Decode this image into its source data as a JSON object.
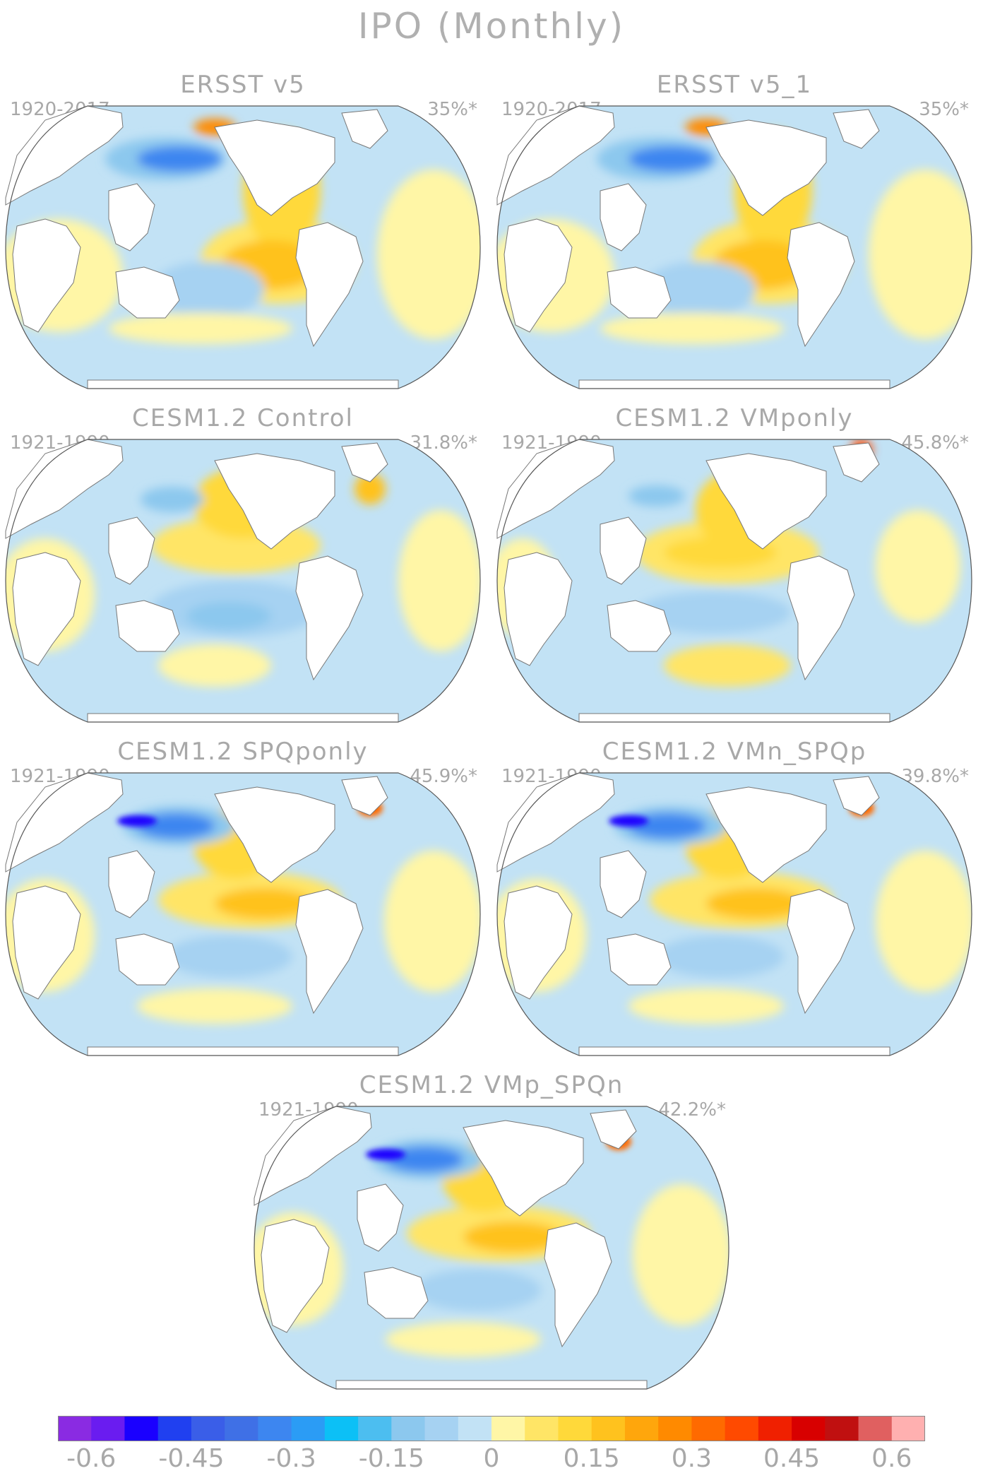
{
  "title": "IPO (Monthly)",
  "panels": [
    {
      "title": "ERSST v5",
      "period": "1920-2017",
      "variance": "35%*"
    },
    {
      "title": "ERSST v5_1",
      "period": "1920-2017",
      "variance": "35%*"
    },
    {
      "title": "CESM1.2 Control",
      "period": "1921-1990",
      "variance": "31.8%*"
    },
    {
      "title": "CESM1.2 VMponly",
      "period": "1921-1990",
      "variance": "45.8%*"
    },
    {
      "title": "CESM1.2 SPQponly",
      "period": "1921-1990",
      "variance": "45.9%*"
    },
    {
      "title": "CESM1.2 VMn_SPQp",
      "period": "1921-1990",
      "variance": "39.8%*"
    },
    {
      "title": "CESM1.2 VMp_SPQn",
      "period": "1921-1990",
      "variance": "42.2%*"
    }
  ],
  "colorbar": {
    "colors": [
      "#8a2be2",
      "#6a1cf0",
      "#1a00ff",
      "#2040f0",
      "#3a5ee8",
      "#3f70e6",
      "#3d86f0",
      "#2b9cf5",
      "#0cc0f6",
      "#4cbef0",
      "#8cc8ee",
      "#a6d2f2",
      "#c2e2f5",
      "#fff6a6",
      "#ffe566",
      "#ffd93a",
      "#ffc21e",
      "#ffa60c",
      "#ff8a00",
      "#ff6a00",
      "#ff4a00",
      "#f02000",
      "#d80000",
      "#c01010",
      "#e06060",
      "#ffb0b0"
    ],
    "tick_labels": [
      "-0.6",
      "-0.45",
      "-0.3",
      "-0.15",
      "0",
      "0.15",
      "0.3",
      "0.45",
      "0.6"
    ],
    "tick_positions": [
      1,
      4,
      7,
      10,
      13,
      16,
      19,
      22,
      25
    ]
  }
}
